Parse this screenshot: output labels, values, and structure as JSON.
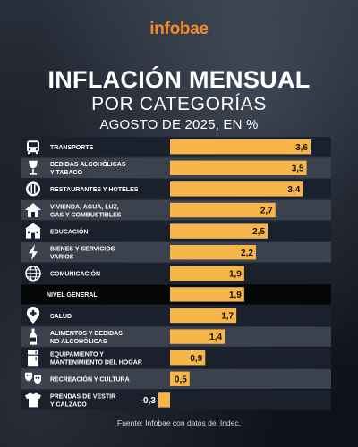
{
  "brand": "infobae",
  "title_line1": "INFLACIÓN MENSUAL",
  "title_line2": "POR CATEGORÍAS",
  "title_line3": "AGOSTO DE 2025, EN %",
  "source": "Fuente: Infobae con datos del Indec.",
  "colors": {
    "bar": "#f6b64a",
    "row_dark": "#1b212c",
    "row_light": "#3c424d",
    "highlight_row": "#050608",
    "accent": "#f08a2a"
  },
  "chart_data": {
    "type": "bar",
    "orientation": "horizontal",
    "title": "INFLACIÓN MENSUAL POR CATEGORÍAS",
    "subtitle": "AGOSTO DE 2025, EN %",
    "xlim": [
      -0.3,
      3.6
    ],
    "grid": false,
    "categories": [
      [
        "TRANSPORTE"
      ],
      [
        "BEBIDAS ALCOHÓLICAS",
        "Y TABACO"
      ],
      [
        "RESTAURANTES Y HOTELES"
      ],
      [
        "VIVIENDA, AGUA, LUZ,",
        "GAS Y COMBUSTIBLES"
      ],
      [
        "EDUCACIÓN"
      ],
      [
        "BIENES Y SERVICIOS",
        "VARIOS"
      ],
      [
        "COMUNICACIÓN"
      ],
      [
        "NIVEL GENERAL"
      ],
      [
        "SALUD"
      ],
      [
        "ALIMENTOS Y BEBIDAS",
        "NO ALCOHÓLICAS"
      ],
      [
        "EQUIPAMIENTO Y",
        "MANTENIMIENTO DEL HOGAR"
      ],
      [
        "RECREACIÓN Y CULTURA"
      ],
      [
        "PRENDAS DE VESTIR",
        "Y CALZADO"
      ]
    ],
    "values": [
      3.6,
      3.5,
      3.4,
      2.7,
      2.5,
      2.2,
      1.9,
      1.9,
      1.7,
      1.4,
      0.9,
      0.5,
      -0.3
    ],
    "value_labels": [
      "3,6",
      "3,5",
      "3,4",
      "2,7",
      "2,5",
      "2,2",
      "1,9",
      "1,9",
      "1,7",
      "1,4",
      "0,9",
      "0,5",
      "-0,3"
    ],
    "icons": [
      "bus-icon",
      "wine-glass-icon",
      "plate-cutlery-icon",
      "house-icon",
      "school-icon",
      "lightning-icon",
      "globe-icon",
      "",
      "medical-pin-icon",
      "bottle-icon",
      "appliance-icon",
      "theater-masks-icon",
      "tshirt-icon"
    ],
    "highlight_category": "NIVEL GENERAL"
  }
}
